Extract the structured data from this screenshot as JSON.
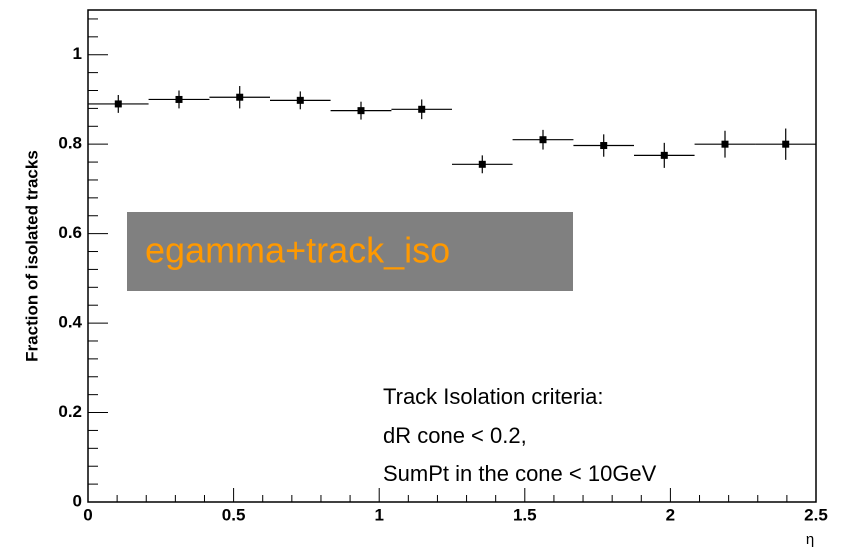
{
  "chart_data": {
    "type": "histogram",
    "y_label": "Fraction of isolated tracks",
    "x_label": "η",
    "bins": [
      0,
      0.208,
      0.417,
      0.625,
      0.833,
      1.042,
      1.25,
      1.458,
      1.667,
      1.875,
      2.083,
      2.292,
      2.5
    ],
    "values": [
      0.89,
      0.9,
      0.905,
      0.898,
      0.875,
      0.878,
      0.755,
      0.81,
      0.797,
      0.775,
      0.8,
      0.8
    ],
    "errors": [
      0.02,
      0.02,
      0.025,
      0.02,
      0.02,
      0.022,
      0.02,
      0.022,
      0.025,
      0.028,
      0.03,
      0.035
    ],
    "color": "#000000",
    "xlim": [
      0,
      2.5
    ],
    "xticks": [
      0,
      0.5,
      1,
      1.5,
      2,
      2.5
    ],
    "xminorticks": [
      0.1,
      0.2,
      0.3,
      0.4,
      0.6,
      0.7,
      0.8,
      0.9,
      1.1,
      1.2,
      1.3,
      1.4,
      1.6,
      1.7,
      1.8,
      1.9,
      2.1,
      2.2,
      2.3,
      2.4
    ],
    "ylim": [
      0,
      1.1
    ],
    "yticks": [
      0,
      0.2,
      0.4,
      0.6,
      0.8,
      1
    ],
    "yminorticks": [
      0.04,
      0.08,
      0.12,
      0.16,
      0.24,
      0.28,
      0.32,
      0.36,
      0.44,
      0.48,
      0.52,
      0.56,
      0.64,
      0.68,
      0.72,
      0.76,
      0.84,
      0.88,
      0.92,
      0.96,
      1.04,
      1.08
    ],
    "annotations": [
      "egamma+track_iso",
      "Track Isolation criteria:",
      "dR cone < 0.2,",
      "SumPt in the cone < 10GeV"
    ]
  }
}
